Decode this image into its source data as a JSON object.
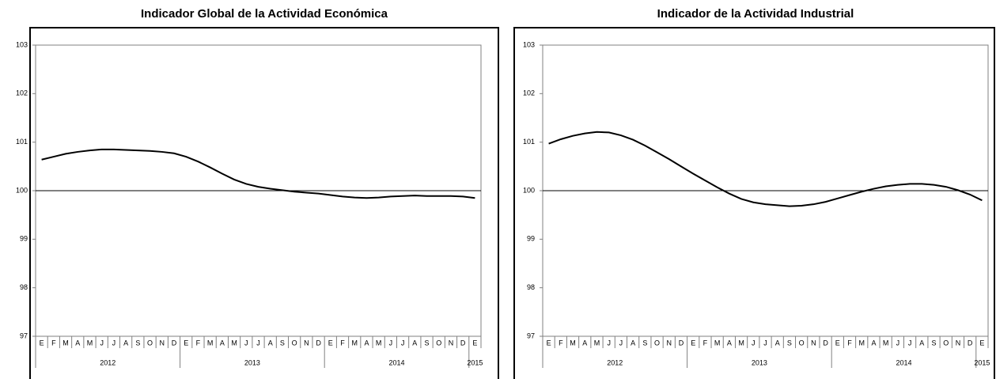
{
  "chart_data": [
    {
      "type": "line",
      "title": "Indicador Global de la Actividad Económica",
      "categories": [
        "E",
        "F",
        "M",
        "A",
        "M",
        "J",
        "J",
        "A",
        "S",
        "O",
        "N",
        "D",
        "E",
        "F",
        "M",
        "A",
        "M",
        "J",
        "J",
        "A",
        "S",
        "O",
        "N",
        "D",
        "E",
        "F",
        "M",
        "A",
        "M",
        "J",
        "J",
        "A",
        "S",
        "O",
        "N",
        "D",
        "E"
      ],
      "years": [
        "2012",
        "2013",
        "2014",
        "2015"
      ],
      "values": [
        100.64,
        100.7,
        100.76,
        100.8,
        100.83,
        100.85,
        100.85,
        100.84,
        100.83,
        100.82,
        100.8,
        100.77,
        100.7,
        100.6,
        100.48,
        100.35,
        100.23,
        100.14,
        100.08,
        100.04,
        100.01,
        99.98,
        99.96,
        99.94,
        99.91,
        99.88,
        99.86,
        99.85,
        99.86,
        99.88,
        99.89,
        99.9,
        99.89,
        99.89,
        99.89,
        99.88,
        99.85
      ],
      "color": "#000000",
      "ylim": [
        97,
        103
      ],
      "yticks": [
        97,
        98,
        99,
        100,
        101,
        102,
        103
      ],
      "reference_line": 100
    },
    {
      "type": "line",
      "title": "Indicador de la Actividad Industrial",
      "categories": [
        "E",
        "F",
        "M",
        "A",
        "M",
        "J",
        "J",
        "A",
        "S",
        "O",
        "N",
        "D",
        "E",
        "F",
        "M",
        "A",
        "M",
        "J",
        "J",
        "A",
        "S",
        "O",
        "N",
        "D",
        "E",
        "F",
        "M",
        "A",
        "M",
        "J",
        "J",
        "A",
        "S",
        "O",
        "N",
        "D",
        "E"
      ],
      "years": [
        "2012",
        "2013",
        "2014",
        "2015"
      ],
      "values": [
        100.97,
        101.06,
        101.13,
        101.18,
        101.21,
        101.2,
        101.14,
        101.05,
        100.93,
        100.79,
        100.65,
        100.5,
        100.35,
        100.21,
        100.07,
        99.94,
        99.83,
        99.76,
        99.72,
        99.7,
        99.68,
        99.69,
        99.72,
        99.77,
        99.84,
        99.91,
        99.98,
        100.04,
        100.09,
        100.12,
        100.14,
        100.14,
        100.12,
        100.08,
        100.01,
        99.92,
        99.8
      ],
      "color": "#000000",
      "ylim": [
        97,
        103
      ],
      "yticks": [
        97,
        98,
        99,
        100,
        101,
        102,
        103
      ],
      "reference_line": 100
    }
  ]
}
